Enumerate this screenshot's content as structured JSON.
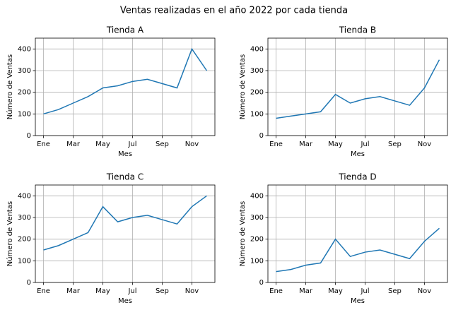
{
  "title": "Ventas realizadas en el año 2022 por cada tienda",
  "chart_data": [
    {
      "type": "line",
      "title": "Tienda A",
      "x_label": "Mes",
      "y_label": "Número de Ventas",
      "categories": [
        "Ene",
        null,
        "Mar",
        null,
        "May",
        null,
        "Jul",
        null,
        "Sep",
        null,
        "Nov",
        null
      ],
      "values": [
        100,
        120,
        150,
        180,
        220,
        230,
        250,
        260,
        240,
        220,
        400,
        300
      ],
      "color": "#1f77b4",
      "ylim": [
        0,
        450
      ],
      "yticks": [
        0,
        100,
        200,
        300,
        400
      ],
      "grid": true
    },
    {
      "type": "line",
      "title": "Tienda B",
      "x_label": "Mes",
      "y_label": "Número de Ventas",
      "categories": [
        "Ene",
        null,
        "Mar",
        null,
        "May",
        null,
        "Jul",
        null,
        "Sep",
        null,
        "Nov",
        null
      ],
      "values": [
        80,
        90,
        100,
        110,
        190,
        150,
        170,
        180,
        160,
        140,
        220,
        350
      ],
      "color": "#1f77b4",
      "ylim": [
        0,
        450
      ],
      "yticks": [
        0,
        100,
        200,
        300,
        400
      ],
      "grid": true
    },
    {
      "type": "line",
      "title": "Tienda C",
      "x_label": "Mes",
      "y_label": "Número de Ventas",
      "categories": [
        "Ene",
        null,
        "Mar",
        null,
        "May",
        null,
        "Jul",
        null,
        "Sep",
        null,
        "Nov",
        null
      ],
      "values": [
        150,
        170,
        200,
        230,
        350,
        280,
        300,
        310,
        290,
        270,
        350,
        400
      ],
      "color": "#1f77b4",
      "ylim": [
        0,
        450
      ],
      "yticks": [
        0,
        100,
        200,
        300,
        400
      ],
      "grid": true
    },
    {
      "type": "line",
      "title": "Tienda D",
      "x_label": "Mes",
      "y_label": "Número de Ventas",
      "categories": [
        "Ene",
        null,
        "Mar",
        null,
        "May",
        null,
        "Jul",
        null,
        "Sep",
        null,
        "Nov",
        null
      ],
      "values": [
        50,
        60,
        80,
        90,
        200,
        120,
        140,
        150,
        130,
        110,
        190,
        250
      ],
      "color": "#1f77b4",
      "ylim": [
        0,
        450
      ],
      "yticks": [
        0,
        100,
        200,
        300,
        400
      ],
      "grid": true
    }
  ]
}
